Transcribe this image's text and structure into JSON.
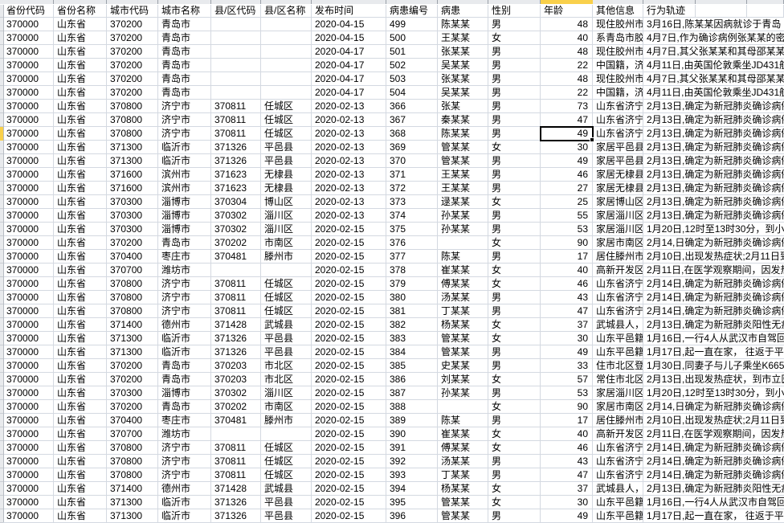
{
  "sheet": {
    "columns": [
      {
        "key": "province_code",
        "label": "省份代码"
      },
      {
        "key": "province_name",
        "label": "省份名称"
      },
      {
        "key": "city_code",
        "label": "城市代码"
      },
      {
        "key": "city_name",
        "label": "城市名称"
      },
      {
        "key": "county_code",
        "label": "县/区代码"
      },
      {
        "key": "county_name",
        "label": "县/区名称"
      },
      {
        "key": "publish_date",
        "label": "发布时间"
      },
      {
        "key": "patient_id",
        "label": "病患编号"
      },
      {
        "key": "patient_name",
        "label": "病患"
      },
      {
        "key": "gender",
        "label": "性别"
      },
      {
        "key": "age",
        "label": "年龄"
      },
      {
        "key": "other_info",
        "label": "其他信息"
      },
      {
        "key": "trajectory",
        "label": "行为轨迹"
      },
      {
        "key": "extra1",
        "label": ""
      },
      {
        "key": "extra2",
        "label": ""
      }
    ],
    "rows": [
      {
        "province_code": "370000",
        "province_name": "山东省",
        "city_code": "370200",
        "city_name": "青岛市",
        "county_code": "",
        "county_name": "",
        "publish_date": "2020-04-15",
        "patient_id": "499",
        "patient_name": "陈某某",
        "gender": "男",
        "age": "48",
        "other_info": "现住胶州市",
        "trajectory": "3月16日,陈某某因病就诊于青岛"
      },
      {
        "province_code": "370000",
        "province_name": "山东省",
        "city_code": "370200",
        "city_name": "青岛市",
        "county_code": "",
        "county_name": "",
        "publish_date": "2020-04-15",
        "patient_id": "500",
        "patient_name": "王某某",
        "gender": "女",
        "age": "40",
        "other_info": "系青岛市胶",
        "trajectory": "4月7日,作为确诊病例张某某的密"
      },
      {
        "province_code": "370000",
        "province_name": "山东省",
        "city_code": "370200",
        "city_name": "青岛市",
        "county_code": "",
        "county_name": "",
        "publish_date": "2020-04-17",
        "patient_id": "501",
        "patient_name": "张某某",
        "gender": "男",
        "age": "48",
        "other_info": "现住胶州市",
        "trajectory": "4月7日,其父张某某和其母邵某某"
      },
      {
        "province_code": "370000",
        "province_name": "山东省",
        "city_code": "370200",
        "city_name": "青岛市",
        "county_code": "",
        "county_name": "",
        "publish_date": "2020-04-17",
        "patient_id": "502",
        "patient_name": "吴某某",
        "gender": "男",
        "age": "22",
        "other_info": "中国籍，济",
        "trajectory": "4月11日,由英国伦敦乘坐JD431航班"
      },
      {
        "province_code": "370000",
        "province_name": "山东省",
        "city_code": "370200",
        "city_name": "青岛市",
        "county_code": "",
        "county_name": "",
        "publish_date": "2020-04-17",
        "patient_id": "503",
        "patient_name": "张某某",
        "gender": "男",
        "age": "48",
        "other_info": "现住胶州市",
        "trajectory": "4月7日,其父张某某和其母邵某某"
      },
      {
        "province_code": "370000",
        "province_name": "山东省",
        "city_code": "370200",
        "city_name": "青岛市",
        "county_code": "",
        "county_name": "",
        "publish_date": "2020-04-17",
        "patient_id": "504",
        "patient_name": "吴某某",
        "gender": "男",
        "age": "22",
        "other_info": "中国籍，济",
        "trajectory": "4月11日,由英国伦敦乘坐JD431航班"
      },
      {
        "province_code": "370000",
        "province_name": "山东省",
        "city_code": "370800",
        "city_name": "济宁市",
        "county_code": "370811",
        "county_name": "任城区",
        "publish_date": "2020-02-13",
        "patient_id": "366",
        "patient_name": "张某",
        "gender": "男",
        "age": "73",
        "other_info": "山东省济宁",
        "trajectory": "2月13日,确定为新冠肺炎确诊病例"
      },
      {
        "province_code": "370000",
        "province_name": "山东省",
        "city_code": "370800",
        "city_name": "济宁市",
        "county_code": "370811",
        "county_name": "任城区",
        "publish_date": "2020-02-13",
        "patient_id": "367",
        "patient_name": "秦某某",
        "gender": "男",
        "age": "47",
        "other_info": "山东省济宁",
        "trajectory": "2月13日,确定为新冠肺炎确诊病例"
      },
      {
        "province_code": "370000",
        "province_name": "山东省",
        "city_code": "370800",
        "city_name": "济宁市",
        "county_code": "370811",
        "county_name": "任城区",
        "publish_date": "2020-02-13",
        "patient_id": "368",
        "patient_name": "陈某某",
        "gender": "男",
        "age": "49",
        "other_info": "山东省济宁",
        "trajectory": "2月13日,确定为新冠肺炎确诊病例"
      },
      {
        "province_code": "370000",
        "province_name": "山东省",
        "city_code": "371300",
        "city_name": "临沂市",
        "county_code": "371326",
        "county_name": "平邑县",
        "publish_date": "2020-02-13",
        "patient_id": "369",
        "patient_name": "管某某",
        "gender": "女",
        "age": "30",
        "other_info": "家居平邑县",
        "trajectory": "2月13日,确定为新冠肺炎确诊病例"
      },
      {
        "province_code": "370000",
        "province_name": "山东省",
        "city_code": "371300",
        "city_name": "临沂市",
        "county_code": "371326",
        "county_name": "平邑县",
        "publish_date": "2020-02-13",
        "patient_id": "370",
        "patient_name": "管某某",
        "gender": "男",
        "age": "49",
        "other_info": "家居平邑县",
        "trajectory": "2月13日,确定为新冠肺炎确诊病例"
      },
      {
        "province_code": "370000",
        "province_name": "山东省",
        "city_code": "371600",
        "city_name": "滨州市",
        "county_code": "371623",
        "county_name": "无棣县",
        "publish_date": "2020-02-13",
        "patient_id": "371",
        "patient_name": "王某某",
        "gender": "男",
        "age": "46",
        "other_info": "家居无棣县",
        "trajectory": "2月13日,确定为新冠肺炎确诊病例"
      },
      {
        "province_code": "370000",
        "province_name": "山东省",
        "city_code": "371600",
        "city_name": "滨州市",
        "county_code": "371623",
        "county_name": "无棣县",
        "publish_date": "2020-02-13",
        "patient_id": "372",
        "patient_name": "王某某",
        "gender": "男",
        "age": "27",
        "other_info": "家居无棣县",
        "trajectory": "2月13日,确定为新冠肺炎确诊病例"
      },
      {
        "province_code": "370000",
        "province_name": "山东省",
        "city_code": "370300",
        "city_name": "淄博市",
        "county_code": "370304",
        "county_name": "博山区",
        "publish_date": "2020-02-13",
        "patient_id": "373",
        "patient_name": "逯某某",
        "gender": "女",
        "age": "25",
        "other_info": "家居博山区",
        "trajectory": "2月13日,确定为新冠肺炎确诊病例"
      },
      {
        "province_code": "370000",
        "province_name": "山东省",
        "city_code": "370300",
        "city_name": "淄博市",
        "county_code": "370302",
        "county_name": "淄川区",
        "publish_date": "2020-02-13",
        "patient_id": "374",
        "patient_name": "孙某某",
        "gender": "男",
        "age": "55",
        "other_info": "家居淄川区",
        "trajectory": "2月13日,确定为新冠肺炎确诊病例"
      },
      {
        "province_code": "370000",
        "province_name": "山东省",
        "city_code": "370300",
        "city_name": "淄博市",
        "county_code": "370302",
        "county_name": "淄川区",
        "publish_date": "2020-02-15",
        "patient_id": "375",
        "patient_name": "孙某某",
        "gender": "男",
        "age": "53",
        "other_info": "家居淄川区",
        "trajectory": "1月20日,12时至13时30分，到小"
      },
      {
        "province_code": "370000",
        "province_name": "山东省",
        "city_code": "370200",
        "city_name": "青岛市",
        "county_code": "370202",
        "county_name": "市南区",
        "publish_date": "2020-02-15",
        "patient_id": "376",
        "patient_name": "",
        "gender": "女",
        "age": "90",
        "other_info": "家居市南区",
        "trajectory": "2月14,日确定为新冠肺炎确诊病例"
      },
      {
        "province_code": "370000",
        "province_name": "山东省",
        "city_code": "370400",
        "city_name": "枣庄市",
        "county_code": "370481",
        "county_name": "滕州市",
        "publish_date": "2020-02-15",
        "patient_id": "377",
        "patient_name": "陈某",
        "gender": "男",
        "age": "17",
        "other_info": "居住滕州市",
        "trajectory": "2月10日,出现发热症状;2月11日到"
      },
      {
        "province_code": "370000",
        "province_name": "山东省",
        "city_code": "370700",
        "city_name": "潍坊市",
        "county_code": "",
        "county_name": "",
        "publish_date": "2020-02-15",
        "patient_id": "378",
        "patient_name": "崔某某",
        "gender": "女",
        "age": "40",
        "other_info": "高新开发区",
        "trajectory": "2月11日,在医学观察期间，因发热"
      },
      {
        "province_code": "370000",
        "province_name": "山东省",
        "city_code": "370800",
        "city_name": "济宁市",
        "county_code": "370811",
        "county_name": "任城区",
        "publish_date": "2020-02-15",
        "patient_id": "379",
        "patient_name": "傅某某",
        "gender": "女",
        "age": "46",
        "other_info": "山东省济宁",
        "trajectory": "2月14日,确定为新冠肺炎确诊病例"
      },
      {
        "province_code": "370000",
        "province_name": "山东省",
        "city_code": "370800",
        "city_name": "济宁市",
        "county_code": "370811",
        "county_name": "任城区",
        "publish_date": "2020-02-15",
        "patient_id": "380",
        "patient_name": "汤某某",
        "gender": "男",
        "age": "43",
        "other_info": "山东省济宁",
        "trajectory": "2月14日,确定为新冠肺炎确诊病例"
      },
      {
        "province_code": "370000",
        "province_name": "山东省",
        "city_code": "370800",
        "city_name": "济宁市",
        "county_code": "370811",
        "county_name": "任城区",
        "publish_date": "2020-02-15",
        "patient_id": "381",
        "patient_name": "丁某某",
        "gender": "男",
        "age": "47",
        "other_info": "山东省济宁",
        "trajectory": "2月14日,确定为新冠肺炎确诊病例"
      },
      {
        "province_code": "370000",
        "province_name": "山东省",
        "city_code": "371400",
        "city_name": "德州市",
        "county_code": "371428",
        "county_name": "武城县",
        "publish_date": "2020-02-15",
        "patient_id": "382",
        "patient_name": "杨某某",
        "gender": "女",
        "age": "37",
        "other_info": "武城县人，",
        "trajectory": "2月13日,确定为新冠肺炎阳性无症"
      },
      {
        "province_code": "370000",
        "province_name": "山东省",
        "city_code": "371300",
        "city_name": "临沂市",
        "county_code": "371326",
        "county_name": "平邑县",
        "publish_date": "2020-02-15",
        "patient_id": "383",
        "patient_name": "管某某",
        "gender": "女",
        "age": "30",
        "other_info": "山东平邑籍",
        "trajectory": "1月16日,一行4人从武汉市自驾回"
      },
      {
        "province_code": "370000",
        "province_name": "山东省",
        "city_code": "371300",
        "city_name": "临沂市",
        "county_code": "371326",
        "county_name": "平邑县",
        "publish_date": "2020-02-15",
        "patient_id": "384",
        "patient_name": "管某某",
        "gender": "男",
        "age": "49",
        "other_info": "山东平邑籍",
        "trajectory": "1月17日,起一直在家， 往返于平"
      },
      {
        "province_code": "370000",
        "province_name": "山东省",
        "city_code": "370200",
        "city_name": "青岛市",
        "county_code": "370203",
        "county_name": "市北区",
        "publish_date": "2020-02-15",
        "patient_id": "385",
        "patient_name": "史某某",
        "gender": "男",
        "age": "33",
        "other_info": "住市北区登",
        "trajectory": "1月30日,同妻子与儿子乘坐K665次"
      },
      {
        "province_code": "370000",
        "province_name": "山东省",
        "city_code": "370200",
        "city_name": "青岛市",
        "county_code": "370203",
        "county_name": "市北区",
        "publish_date": "2020-02-15",
        "patient_id": "386",
        "patient_name": "刘某某",
        "gender": "女",
        "age": "57",
        "other_info": "常住市北区",
        "trajectory": "2月13日,出现发热症状，到市立医"
      },
      {
        "province_code": "370000",
        "province_name": "山东省",
        "city_code": "370300",
        "city_name": "淄博市",
        "county_code": "370302",
        "county_name": "淄川区",
        "publish_date": "2020-02-15",
        "patient_id": "387",
        "patient_name": "孙某某",
        "gender": "男",
        "age": "53",
        "other_info": "家居淄川区",
        "trajectory": "1月20日,12时至13时30分，到小"
      },
      {
        "province_code": "370000",
        "province_name": "山东省",
        "city_code": "370200",
        "city_name": "青岛市",
        "county_code": "370202",
        "county_name": "市南区",
        "publish_date": "2020-02-15",
        "patient_id": "388",
        "patient_name": "",
        "gender": "女",
        "age": "90",
        "other_info": "家居市南区",
        "trajectory": "2月14,日确定为新冠肺炎确诊病例"
      },
      {
        "province_code": "370000",
        "province_name": "山东省",
        "city_code": "370400",
        "city_name": "枣庄市",
        "county_code": "370481",
        "county_name": "滕州市",
        "publish_date": "2020-02-15",
        "patient_id": "389",
        "patient_name": "陈某",
        "gender": "男",
        "age": "17",
        "other_info": "居住滕州市",
        "trajectory": "2月10日,出现发热症状;2月11日到"
      },
      {
        "province_code": "370000",
        "province_name": "山东省",
        "city_code": "370700",
        "city_name": "潍坊市",
        "county_code": "",
        "county_name": "",
        "publish_date": "2020-02-15",
        "patient_id": "390",
        "patient_name": "崔某某",
        "gender": "女",
        "age": "40",
        "other_info": "高新开发区",
        "trajectory": "2月11日,在医学观察期间，因发热"
      },
      {
        "province_code": "370000",
        "province_name": "山东省",
        "city_code": "370800",
        "city_name": "济宁市",
        "county_code": "370811",
        "county_name": "任城区",
        "publish_date": "2020-02-15",
        "patient_id": "391",
        "patient_name": "傅某某",
        "gender": "女",
        "age": "46",
        "other_info": "山东省济宁",
        "trajectory": "2月14日,确定为新冠肺炎确诊病例"
      },
      {
        "province_code": "370000",
        "province_name": "山东省",
        "city_code": "370800",
        "city_name": "济宁市",
        "county_code": "370811",
        "county_name": "任城区",
        "publish_date": "2020-02-15",
        "patient_id": "392",
        "patient_name": "汤某某",
        "gender": "男",
        "age": "43",
        "other_info": "山东省济宁",
        "trajectory": "2月14日,确定为新冠肺炎确诊病例"
      },
      {
        "province_code": "370000",
        "province_name": "山东省",
        "city_code": "370800",
        "city_name": "济宁市",
        "county_code": "370811",
        "county_name": "任城区",
        "publish_date": "2020-02-15",
        "patient_id": "393",
        "patient_name": "丁某某",
        "gender": "男",
        "age": "47",
        "other_info": "山东省济宁",
        "trajectory": "2月14日,确定为新冠肺炎确诊病例"
      },
      {
        "province_code": "370000",
        "province_name": "山东省",
        "city_code": "371400",
        "city_name": "德州市",
        "county_code": "371428",
        "county_name": "武城县",
        "publish_date": "2020-02-15",
        "patient_id": "394",
        "patient_name": "杨某某",
        "gender": "女",
        "age": "37",
        "other_info": "武城县人，",
        "trajectory": "2月13日,确定为新冠肺炎阳性无症"
      },
      {
        "province_code": "370000",
        "province_name": "山东省",
        "city_code": "371300",
        "city_name": "临沂市",
        "county_code": "371326",
        "county_name": "平邑县",
        "publish_date": "2020-02-15",
        "patient_id": "395",
        "patient_name": "管某某",
        "gender": "女",
        "age": "30",
        "other_info": "山东平邑籍",
        "trajectory": "1月16日,一行4人从武汉市自驾回"
      },
      {
        "province_code": "370000",
        "province_name": "山东省",
        "city_code": "371300",
        "city_name": "临沂市",
        "county_code": "371326",
        "county_name": "平邑县",
        "publish_date": "2020-02-15",
        "patient_id": "396",
        "patient_name": "管某某",
        "gender": "男",
        "age": "49",
        "other_info": "山东平邑籍",
        "trajectory": "1月17日,起一直在家， 往返于平"
      }
    ],
    "selection": {
      "patient_id": "368",
      "column": "age",
      "row_index": 8,
      "value": "49"
    }
  },
  "colors": {
    "selection_highlight": "#f9d04b",
    "selection_border": "#000000",
    "gridline": "#d4d9e1",
    "header_strip": "#e8eaed"
  }
}
